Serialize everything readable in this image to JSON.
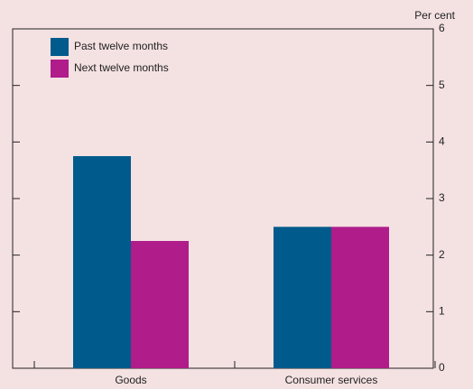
{
  "chart_data": {
    "type": "bar",
    "y_unit_label": "Per cent",
    "categories": [
      "Goods",
      "Consumer services"
    ],
    "series": [
      {
        "name": "Past twelve months",
        "color": "#005a8c",
        "values": [
          3.75,
          2.5
        ]
      },
      {
        "name": "Next twelve months",
        "color": "#b01c8a",
        "values": [
          2.25,
          2.5
        ]
      }
    ],
    "ylim": [
      0,
      6
    ],
    "yticks": [
      0,
      1,
      2,
      3,
      4,
      5,
      6
    ],
    "legend": "upper left",
    "grid": false
  }
}
